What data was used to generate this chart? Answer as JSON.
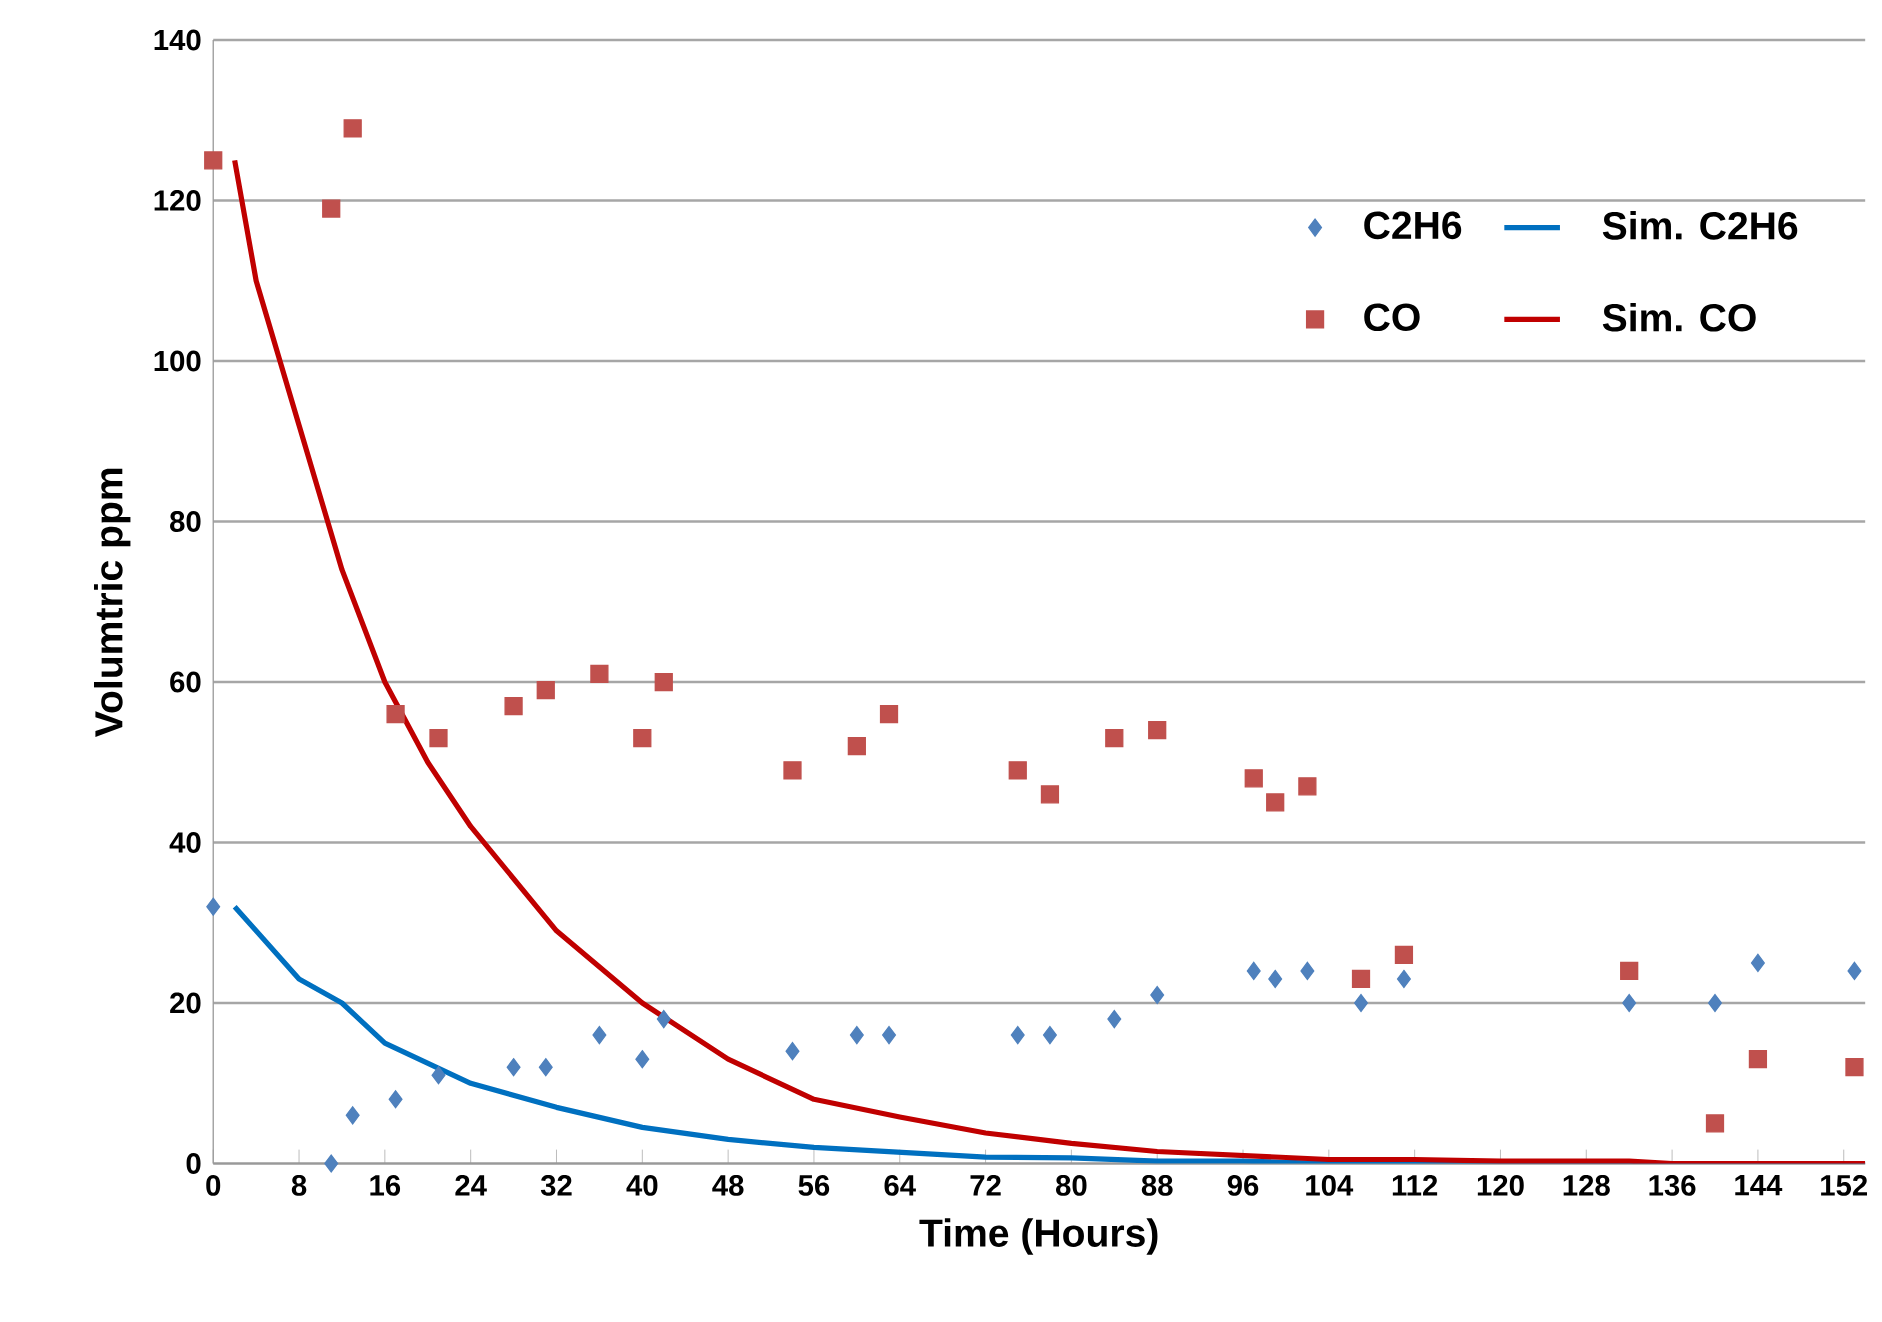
{
  "chart_data": {
    "type": "scatter",
    "xlabel": "Time  (Hours)",
    "ylabel": "Volumtric ppm",
    "xlim": [
      0,
      154
    ],
    "xticks": [
      0,
      8,
      16,
      24,
      32,
      40,
      48,
      56,
      64,
      72,
      80,
      88,
      96,
      104,
      112,
      120,
      128,
      136,
      144,
      152
    ],
    "ylim": [
      0,
      140
    ],
    "yticks": [
      0,
      20,
      40,
      60,
      80,
      100,
      120,
      140
    ],
    "grid": "y",
    "legend": "top right",
    "series": [
      {
        "name": "C2H6",
        "marker": "diamond",
        "color": "#4f81bd",
        "x": [
          0,
          11,
          13,
          17,
          21,
          28,
          31,
          36,
          40,
          42,
          54,
          60,
          63,
          75,
          78,
          84,
          88,
          97,
          99,
          102,
          107,
          111,
          132,
          140,
          144,
          153
        ],
        "values": [
          32,
          0,
          6,
          8,
          11,
          12,
          12,
          16,
          13,
          18,
          14,
          16,
          16,
          16,
          16,
          18,
          21,
          24,
          23,
          24,
          20,
          23,
          20,
          20,
          25,
          24
        ]
      },
      {
        "name": "Sim. C2H6",
        "type": "line",
        "marker": "none",
        "line_style": "solid",
        "color": "#0070c0",
        "x": [
          2,
          8,
          12,
          16,
          24,
          32,
          40,
          48,
          56,
          64,
          72,
          80,
          88,
          96,
          104,
          154
        ],
        "values": [
          32,
          23,
          20,
          15,
          10,
          7,
          4.5,
          3,
          2,
          1.4,
          0.8,
          0.7,
          0.3,
          0.3,
          0,
          0
        ]
      },
      {
        "name": "CO",
        "marker": "square",
        "color": "#c0504d",
        "x": [
          0,
          11,
          13,
          17,
          21,
          28,
          31,
          36,
          40,
          42,
          54,
          60,
          63,
          75,
          78,
          84,
          88,
          97,
          99,
          102,
          107,
          111,
          132,
          140,
          144,
          153
        ],
        "values": [
          125,
          119,
          129,
          56,
          53,
          57,
          59,
          61,
          53,
          60,
          49,
          52,
          56,
          49,
          46,
          53,
          54,
          48,
          45,
          47,
          23,
          26,
          24,
          5,
          13,
          12
        ]
      },
      {
        "name": "Sim. CO",
        "type": "line",
        "marker": "none",
        "line_style": "solid",
        "color": "#c00000",
        "x": [
          2,
          4,
          8,
          12,
          16,
          20,
          24,
          32,
          40,
          48,
          56,
          64,
          72,
          80,
          88,
          96,
          104,
          112,
          120,
          132,
          136,
          154
        ],
        "values": [
          125,
          110,
          92,
          74,
          60,
          50,
          42,
          29,
          20,
          13,
          8,
          5.8,
          3.8,
          2.5,
          1.5,
          1,
          0.5,
          0.5,
          0.3,
          0.3,
          0,
          0
        ]
      }
    ]
  }
}
